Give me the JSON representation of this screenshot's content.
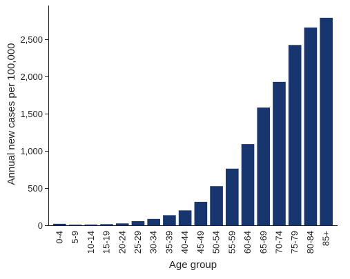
{
  "chart_data": {
    "type": "bar",
    "title": "",
    "xlabel": "Age group",
    "ylabel": "Annual new cases per 100,000",
    "categories": [
      "0-4",
      "5-9",
      "10-14",
      "15-19",
      "20-24",
      "25-29",
      "30-34",
      "35-39",
      "40-44",
      "45-49",
      "50-54",
      "55-59",
      "60-64",
      "65-69",
      "70-74",
      "75-79",
      "80-84",
      "85+"
    ],
    "values": [
      20,
      8,
      10,
      15,
      25,
      55,
      85,
      135,
      200,
      315,
      525,
      760,
      1090,
      1580,
      1925,
      2420,
      2655,
      2785
    ],
    "ylim": [
      0,
      2950
    ],
    "yticks": [
      0,
      500,
      1000,
      1500,
      2000,
      2500
    ],
    "ytick_labels": [
      "0",
      "500",
      "1,000",
      "1,500",
      "2,000",
      "2,500"
    ],
    "grid": false,
    "bar_color": "#17356e"
  }
}
